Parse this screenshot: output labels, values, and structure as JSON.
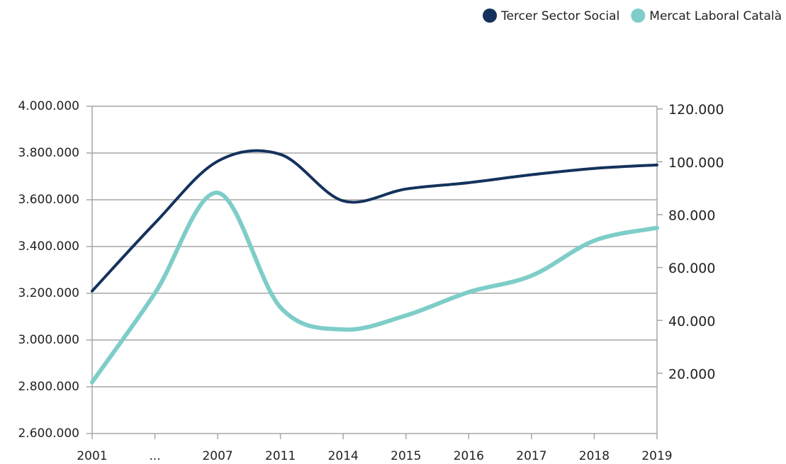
{
  "chart_data": {
    "type": "line",
    "categories": [
      "2001",
      "...",
      "2007",
      "2011",
      "2014",
      "2015",
      "2016",
      "2017",
      "2018",
      "2019"
    ],
    "series": [
      {
        "name": "Tercer Sector Social",
        "color": "#14325c",
        "axis": "y2",
        "values": [
          51100,
          76800,
          100200,
          102800,
          85200,
          89700,
          92100,
          95100,
          97500,
          98800
        ]
      },
      {
        "name": "Mercat Laboral Català",
        "color": "#7ecdc8",
        "values": [
          2820000,
          3200000,
          3630000,
          3140000,
          3045000,
          3105000,
          3205000,
          3275000,
          3425000,
          3480000
        ]
      }
    ],
    "ylim": [
      2600000,
      4000000
    ],
    "yticks": [
      {
        "value": 2600000,
        "label": "2.600.000"
      },
      {
        "value": 2800000,
        "label": "2.800.000"
      },
      {
        "value": 3000000,
        "label": "3.000.000"
      },
      {
        "value": 3200000,
        "label": "3.200.000"
      },
      {
        "value": 3400000,
        "label": "3.400.000"
      },
      {
        "value": 3600000,
        "label": "3.600.000"
      },
      {
        "value": 3800000,
        "label": "3.800.000"
      },
      {
        "value": 4000000,
        "label": "4.000.000"
      }
    ],
    "y2lim": [
      -2800,
      121000
    ],
    "y2ticks": [
      {
        "value": 20000,
        "label": "20.000"
      },
      {
        "value": 40000,
        "label": "40.000"
      },
      {
        "value": 60000,
        "label": "60.000"
      },
      {
        "value": 80000,
        "label": "80.000"
      },
      {
        "value": 100000,
        "label": "100.000"
      },
      {
        "value": 120000,
        "label": "120.000"
      }
    ],
    "grid": true,
    "legend": "top-right"
  }
}
